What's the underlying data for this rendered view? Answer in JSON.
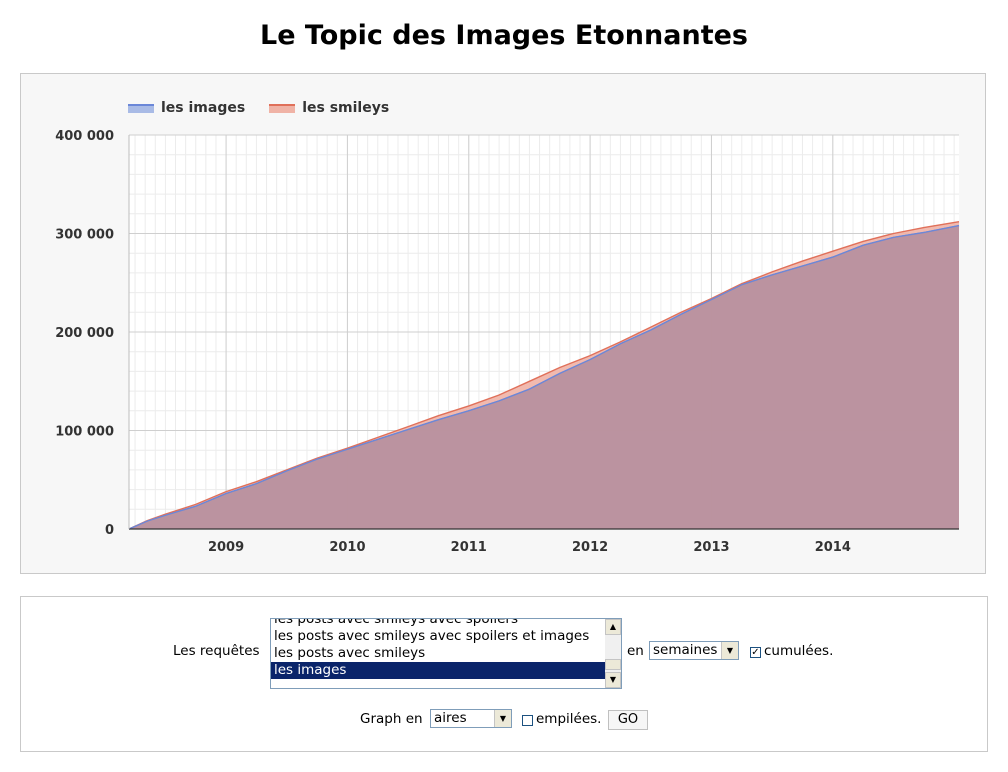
{
  "page": {
    "title": "Le Topic des Images Etonnantes"
  },
  "chart_data": {
    "type": "area",
    "title": "",
    "xlabel": "",
    "ylabel": "",
    "legend_position": "top-left",
    "grid": true,
    "stacked": false,
    "cumulative": true,
    "xlim": [
      2008.2,
      2015.04
    ],
    "ylim": [
      0,
      400000
    ],
    "y_ticks": [
      0,
      100000,
      200000,
      300000,
      400000
    ],
    "y_tick_labels": [
      "0",
      "100 000",
      "200 000",
      "300 000",
      "400 000"
    ],
    "x_ticks": [
      2009,
      2010,
      2011,
      2012,
      2013,
      2014
    ],
    "x_tick_labels": [
      "2009",
      "2010",
      "2011",
      "2012",
      "2013",
      "2014"
    ],
    "x": [
      2008.2,
      2008.35,
      2008.5,
      2008.75,
      2009.0,
      2009.25,
      2009.5,
      2009.75,
      2010.0,
      2010.25,
      2010.5,
      2010.75,
      2011.0,
      2011.25,
      2011.5,
      2011.75,
      2012.0,
      2012.25,
      2012.5,
      2012.75,
      2013.0,
      2013.25,
      2013.5,
      2013.75,
      2014.0,
      2014.25,
      2014.5,
      2014.75,
      2015.04
    ],
    "series": [
      {
        "name": "les images",
        "color": "#6b87d8",
        "fill": "#a9bbe6",
        "values": [
          0,
          8000,
          14000,
          23000,
          36000,
          46000,
          59000,
          71000,
          81000,
          91000,
          101000,
          111000,
          120000,
          130000,
          142000,
          158000,
          172000,
          188000,
          202000,
          218000,
          233000,
          248000,
          258000,
          267000,
          276000,
          288000,
          296000,
          301000,
          308000
        ]
      },
      {
        "name": "les smileys",
        "color": "#e0705a",
        "fill": "#f0b3a6",
        "values": [
          0,
          8500,
          15000,
          25000,
          38000,
          48000,
          60000,
          72000,
          82000,
          93000,
          104000,
          115000,
          125000,
          136000,
          150000,
          164000,
          176000,
          190000,
          205000,
          220000,
          234000,
          249000,
          261000,
          272000,
          282000,
          292000,
          300000,
          306000,
          312000
        ]
      }
    ]
  },
  "form": {
    "requetes_label": "Les requêtes",
    "queries": [
      {
        "label": "les posts avec smileys avec spoilers",
        "selected": false
      },
      {
        "label": "les posts avec smileys avec spoilers et images",
        "selected": false
      },
      {
        "label": "les posts avec smileys",
        "selected": false
      },
      {
        "label": "les images",
        "selected": true
      }
    ],
    "en_label": "en",
    "period_value": "semaines",
    "cumulees_label": "cumulées.",
    "cumulees_checked": true,
    "graph_en_label": "Graph en",
    "graph_type_value": "aires",
    "empilees_label": "empilées.",
    "empilees_checked": false,
    "go_label": "GO"
  }
}
